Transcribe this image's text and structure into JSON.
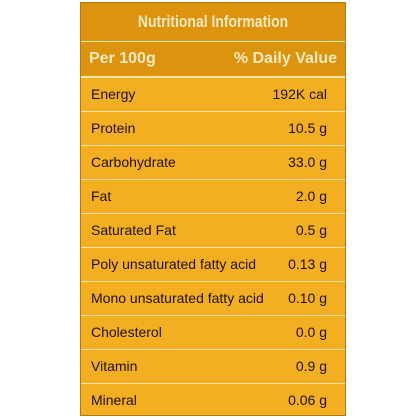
{
  "table": {
    "title": "Nutritional Information",
    "header_left": "Per 100g",
    "header_right": "% Daily Value",
    "rows": [
      {
        "name": "Energy",
        "value": "192K cal"
      },
      {
        "name": "Protein",
        "value": "10.5 g"
      },
      {
        "name": "Carbohydrate",
        "value": "33.0 g"
      },
      {
        "name": "Fat",
        "value": "2.0 g"
      },
      {
        "name": "Saturated Fat",
        "value": "0.5 g"
      },
      {
        "name": "Poly unsaturated fatty acid",
        "value": "0.13 g"
      },
      {
        "name": "Mono unsaturated fatty acid",
        "value": "0.10 g"
      },
      {
        "name": "Cholesterol",
        "value": "0.0 g"
      },
      {
        "name": "Vitamin",
        "value": "0.9 g"
      },
      {
        "name": "Mineral",
        "value": "0.06 g"
      }
    ]
  },
  "colors": {
    "background": "#f3ae22",
    "header": "#dc930e",
    "header_text": "#fbe9c0",
    "text": "#1e1207",
    "divider": "#fbe4a6"
  }
}
